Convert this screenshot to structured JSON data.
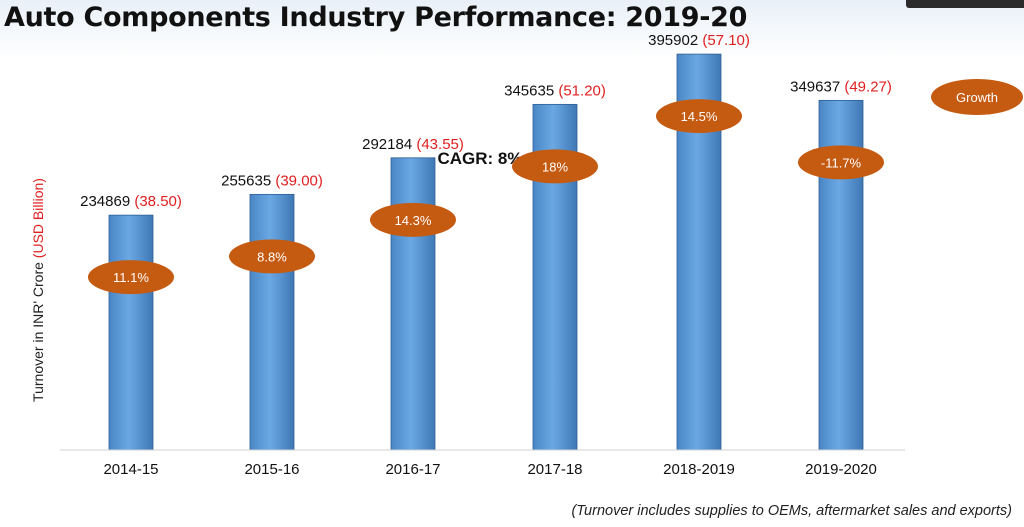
{
  "title": "Auto Components Industry Performance: 2019-20",
  "legend_label": "Growth",
  "subtitle": "CAGR: 8%",
  "footnote": "(Turnover includes supplies to OEMs, aftermarket sales and exports)",
  "colors": {
    "bar": "#5b9bd5",
    "growth_oval": "#c55a11",
    "usd_text": "#e02020"
  },
  "chart_data": {
    "type": "bar",
    "categories": [
      "2014-15",
      "2015-16",
      "2016-17",
      "2017-18",
      "2018-2019",
      "2019-2020"
    ],
    "series": [
      {
        "name": "Turnover in INR' Crore",
        "values": [
          234869,
          255635,
          292184,
          345635,
          395902,
          349637
        ],
        "value_labels": [
          "234869",
          "255635",
          "292184",
          "345635",
          "395902",
          "349637"
        ]
      },
      {
        "name": "USD Billion",
        "values": [
          38.5,
          39.0,
          43.55,
          51.2,
          57.1,
          49.27
        ],
        "value_labels": [
          "(38.50)",
          "(39.00)",
          "(43.55)",
          "(51.20)",
          "(57.10)",
          "(49.27)"
        ]
      },
      {
        "name": "Growth",
        "values": [
          11.1,
          8.8,
          14.3,
          18,
          14.5,
          -11.7
        ],
        "value_labels": [
          "11.1%",
          "8.8%",
          "14.3%",
          "18%",
          "14.5%",
          "-11.7%"
        ]
      }
    ],
    "ylabel": "Turnover in INR' Crore",
    "ylabel_unit": "(USD Billion)",
    "ylim": [
      0,
      400000
    ],
    "grid": false,
    "legend_position": "top-right"
  }
}
